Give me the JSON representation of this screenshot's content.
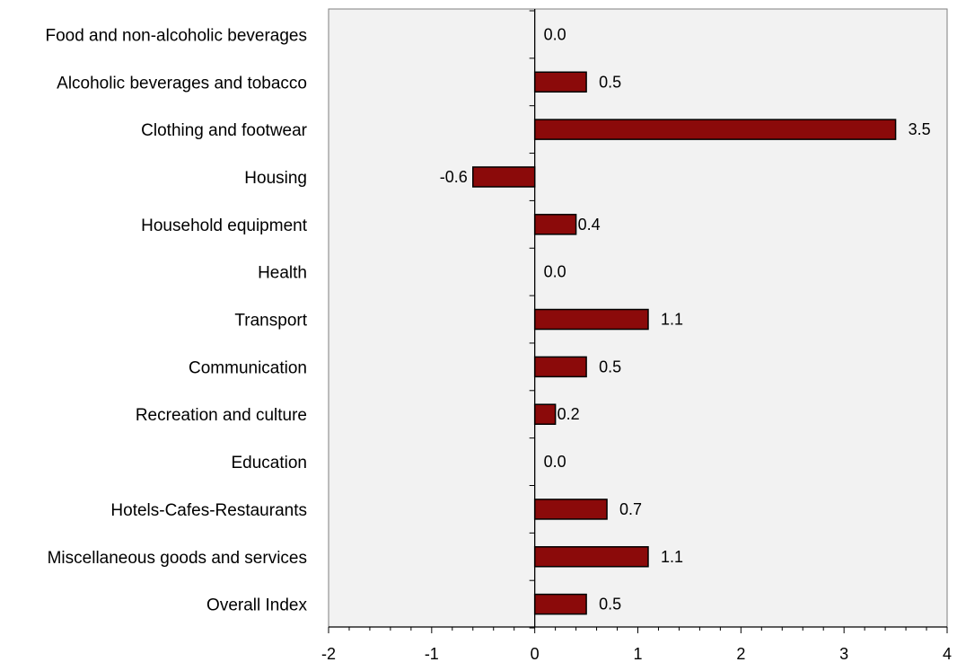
{
  "chart_data": {
    "type": "bar",
    "orientation": "horizontal",
    "title": "",
    "xlabel": "",
    "ylabel": "",
    "categories": [
      "Food and non-alcoholic beverages",
      "Alcoholic beverages and tobacco",
      "Clothing and footwear",
      "Housing",
      "Household equipment",
      "Health",
      "Transport",
      "Communication",
      "Recreation and culture",
      "Education",
      "Hotels-Cafes-Restaurants",
      "Miscellaneous goods and services",
      "Overall Index"
    ],
    "values": [
      0.0,
      0.5,
      3.5,
      -0.6,
      0.4,
      0.0,
      1.1,
      0.5,
      0.2,
      0.0,
      0.7,
      1.1,
      0.5
    ],
    "value_labels": [
      "0.0",
      "0.5",
      "3.5",
      "-0.6",
      "0.4",
      "0.0",
      "1.1",
      "0.5",
      "0.2",
      "0.0",
      "0.7",
      "1.1",
      "0.5"
    ],
    "xlim": [
      -2,
      4
    ],
    "xticks": [
      "-2",
      "-1",
      "0",
      "1",
      "2",
      "3",
      "4"
    ],
    "grid": false,
    "legend": "none",
    "colors": {
      "bar_fill": "#8B0A0A",
      "bar_stroke": "#000000",
      "plot_background": "#F2F2F2",
      "axis": "#000000",
      "frame": "#7F7F7F"
    }
  }
}
